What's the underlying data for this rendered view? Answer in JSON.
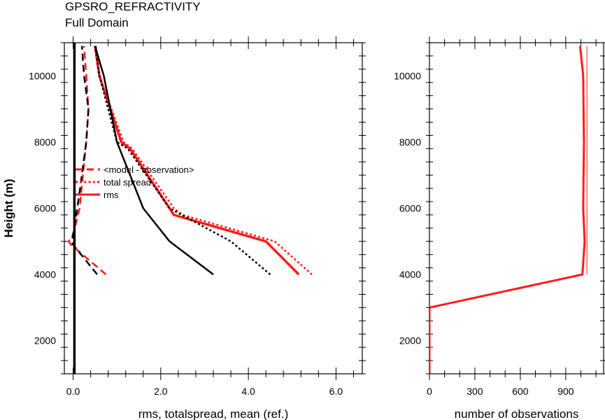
{
  "title": "GPSRO_REFRACTIVITY",
  "subtitle": "Full Domain",
  "colors": {
    "red": "#ff1a1a",
    "black": "#000000"
  },
  "chart_data": [
    {
      "type": "line",
      "panel": "left",
      "xlabel": "rms, totalspread, mean (ref.)",
      "ylabel": "Height (m)",
      "xlim": [
        -0.2,
        6.6
      ],
      "ylim": [
        1000,
        11000
      ],
      "xticks": [
        "0.0",
        "2.0",
        "4.0",
        "6.0"
      ],
      "yticks": [
        "2000",
        "4000",
        "6000",
        "8000",
        "10000"
      ],
      "legend": {
        "placement": "center-left",
        "entries": [
          {
            "label": "<model - observation>",
            "style": "dashed"
          },
          {
            "label": "total spread",
            "style": "dotted"
          },
          {
            "label": "rms",
            "style": "solid"
          }
        ]
      },
      "series": [
        {
          "color": "red",
          "style": "solid",
          "width": 3.5,
          "points": [
            [
              5.15,
              4000
            ],
            [
              4.4,
              5000
            ],
            [
              2.3,
              5800
            ],
            [
              2.2,
              6000
            ],
            [
              1.3,
              7800
            ],
            [
              1.1,
              8000
            ],
            [
              0.6,
              10000
            ],
            [
              0.5,
              10900
            ]
          ]
        },
        {
          "color": "red",
          "style": "dotted",
          "width": 2.5,
          "points": [
            [
              5.45,
              4000
            ],
            [
              4.6,
              5000
            ],
            [
              2.5,
              5800
            ],
            [
              2.3,
              6000
            ],
            [
              1.35,
              7800
            ],
            [
              1.15,
              8000
            ],
            [
              0.6,
              10000
            ],
            [
              0.52,
              10900
            ]
          ]
        },
        {
          "color": "red",
          "style": "dashed",
          "width": 2.5,
          "points": [
            [
              0.75,
              4000
            ],
            [
              -0.05,
              4900
            ],
            [
              -0.1,
              5000
            ],
            [
              0.0,
              5200
            ],
            [
              0.15,
              6000
            ],
            [
              0.3,
              8000
            ],
            [
              0.35,
              9000
            ],
            [
              0.3,
              10000
            ],
            [
              0.25,
              10900
            ]
          ]
        },
        {
          "color": "black",
          "style": "solid",
          "width": 2.5,
          "points": [
            [
              3.2,
              4000
            ],
            [
              2.2,
              5000
            ],
            [
              1.6,
              6000
            ],
            [
              1.3,
              7000
            ],
            [
              1.0,
              8000
            ],
            [
              0.7,
              10000
            ],
            [
              0.5,
              10900
            ]
          ]
        },
        {
          "color": "black",
          "style": "dotted",
          "width": 2.5,
          "points": [
            [
              4.5,
              4000
            ],
            [
              3.6,
              5000
            ],
            [
              2.2,
              6000
            ],
            [
              1.25,
              7800
            ],
            [
              1.0,
              8000
            ],
            [
              0.6,
              10000
            ],
            [
              0.5,
              10900
            ]
          ]
        },
        {
          "color": "black",
          "style": "dashed",
          "width": 2.5,
          "points": [
            [
              0.55,
              4000
            ],
            [
              0.0,
              4900
            ],
            [
              -0.03,
              5000
            ],
            [
              0.05,
              5600
            ],
            [
              0.15,
              6500
            ],
            [
              0.3,
              8000
            ],
            [
              0.35,
              9000
            ],
            [
              0.25,
              10000
            ],
            [
              0.2,
              10900
            ]
          ]
        },
        {
          "color": "black",
          "style": "solid",
          "width": 3.5,
          "points": [
            [
              0.03,
              1000
            ],
            [
              0.03,
              11000
            ]
          ]
        }
      ]
    },
    {
      "type": "line",
      "panel": "right",
      "xlabel": "number of observations",
      "ylabel": "",
      "xlim": [
        0,
        1150
      ],
      "ylim": [
        1000,
        11000
      ],
      "xticks": [
        "0",
        "300",
        "600",
        "900"
      ],
      "yticks": [
        "2000",
        "4000",
        "6000",
        "8000",
        "10000"
      ],
      "series": [
        {
          "color": "red",
          "style": "solid",
          "width": 3,
          "points": [
            [
              0,
              1000
            ],
            [
              0,
              3000
            ],
            [
              1010,
              4000
            ],
            [
              1025,
              5000
            ],
            [
              1015,
              6000
            ],
            [
              1020,
              8000
            ],
            [
              1015,
              10000
            ],
            [
              995,
              10900
            ]
          ]
        },
        {
          "color": "red",
          "style": "solid",
          "width": 1,
          "points": [
            [
              1040,
              4000
            ],
            [
              1040,
              5000
            ],
            [
              1040,
              6000
            ],
            [
              1040,
              8000
            ],
            [
              1040,
              10000
            ],
            [
              1040,
              10900
            ]
          ]
        }
      ]
    }
  ]
}
